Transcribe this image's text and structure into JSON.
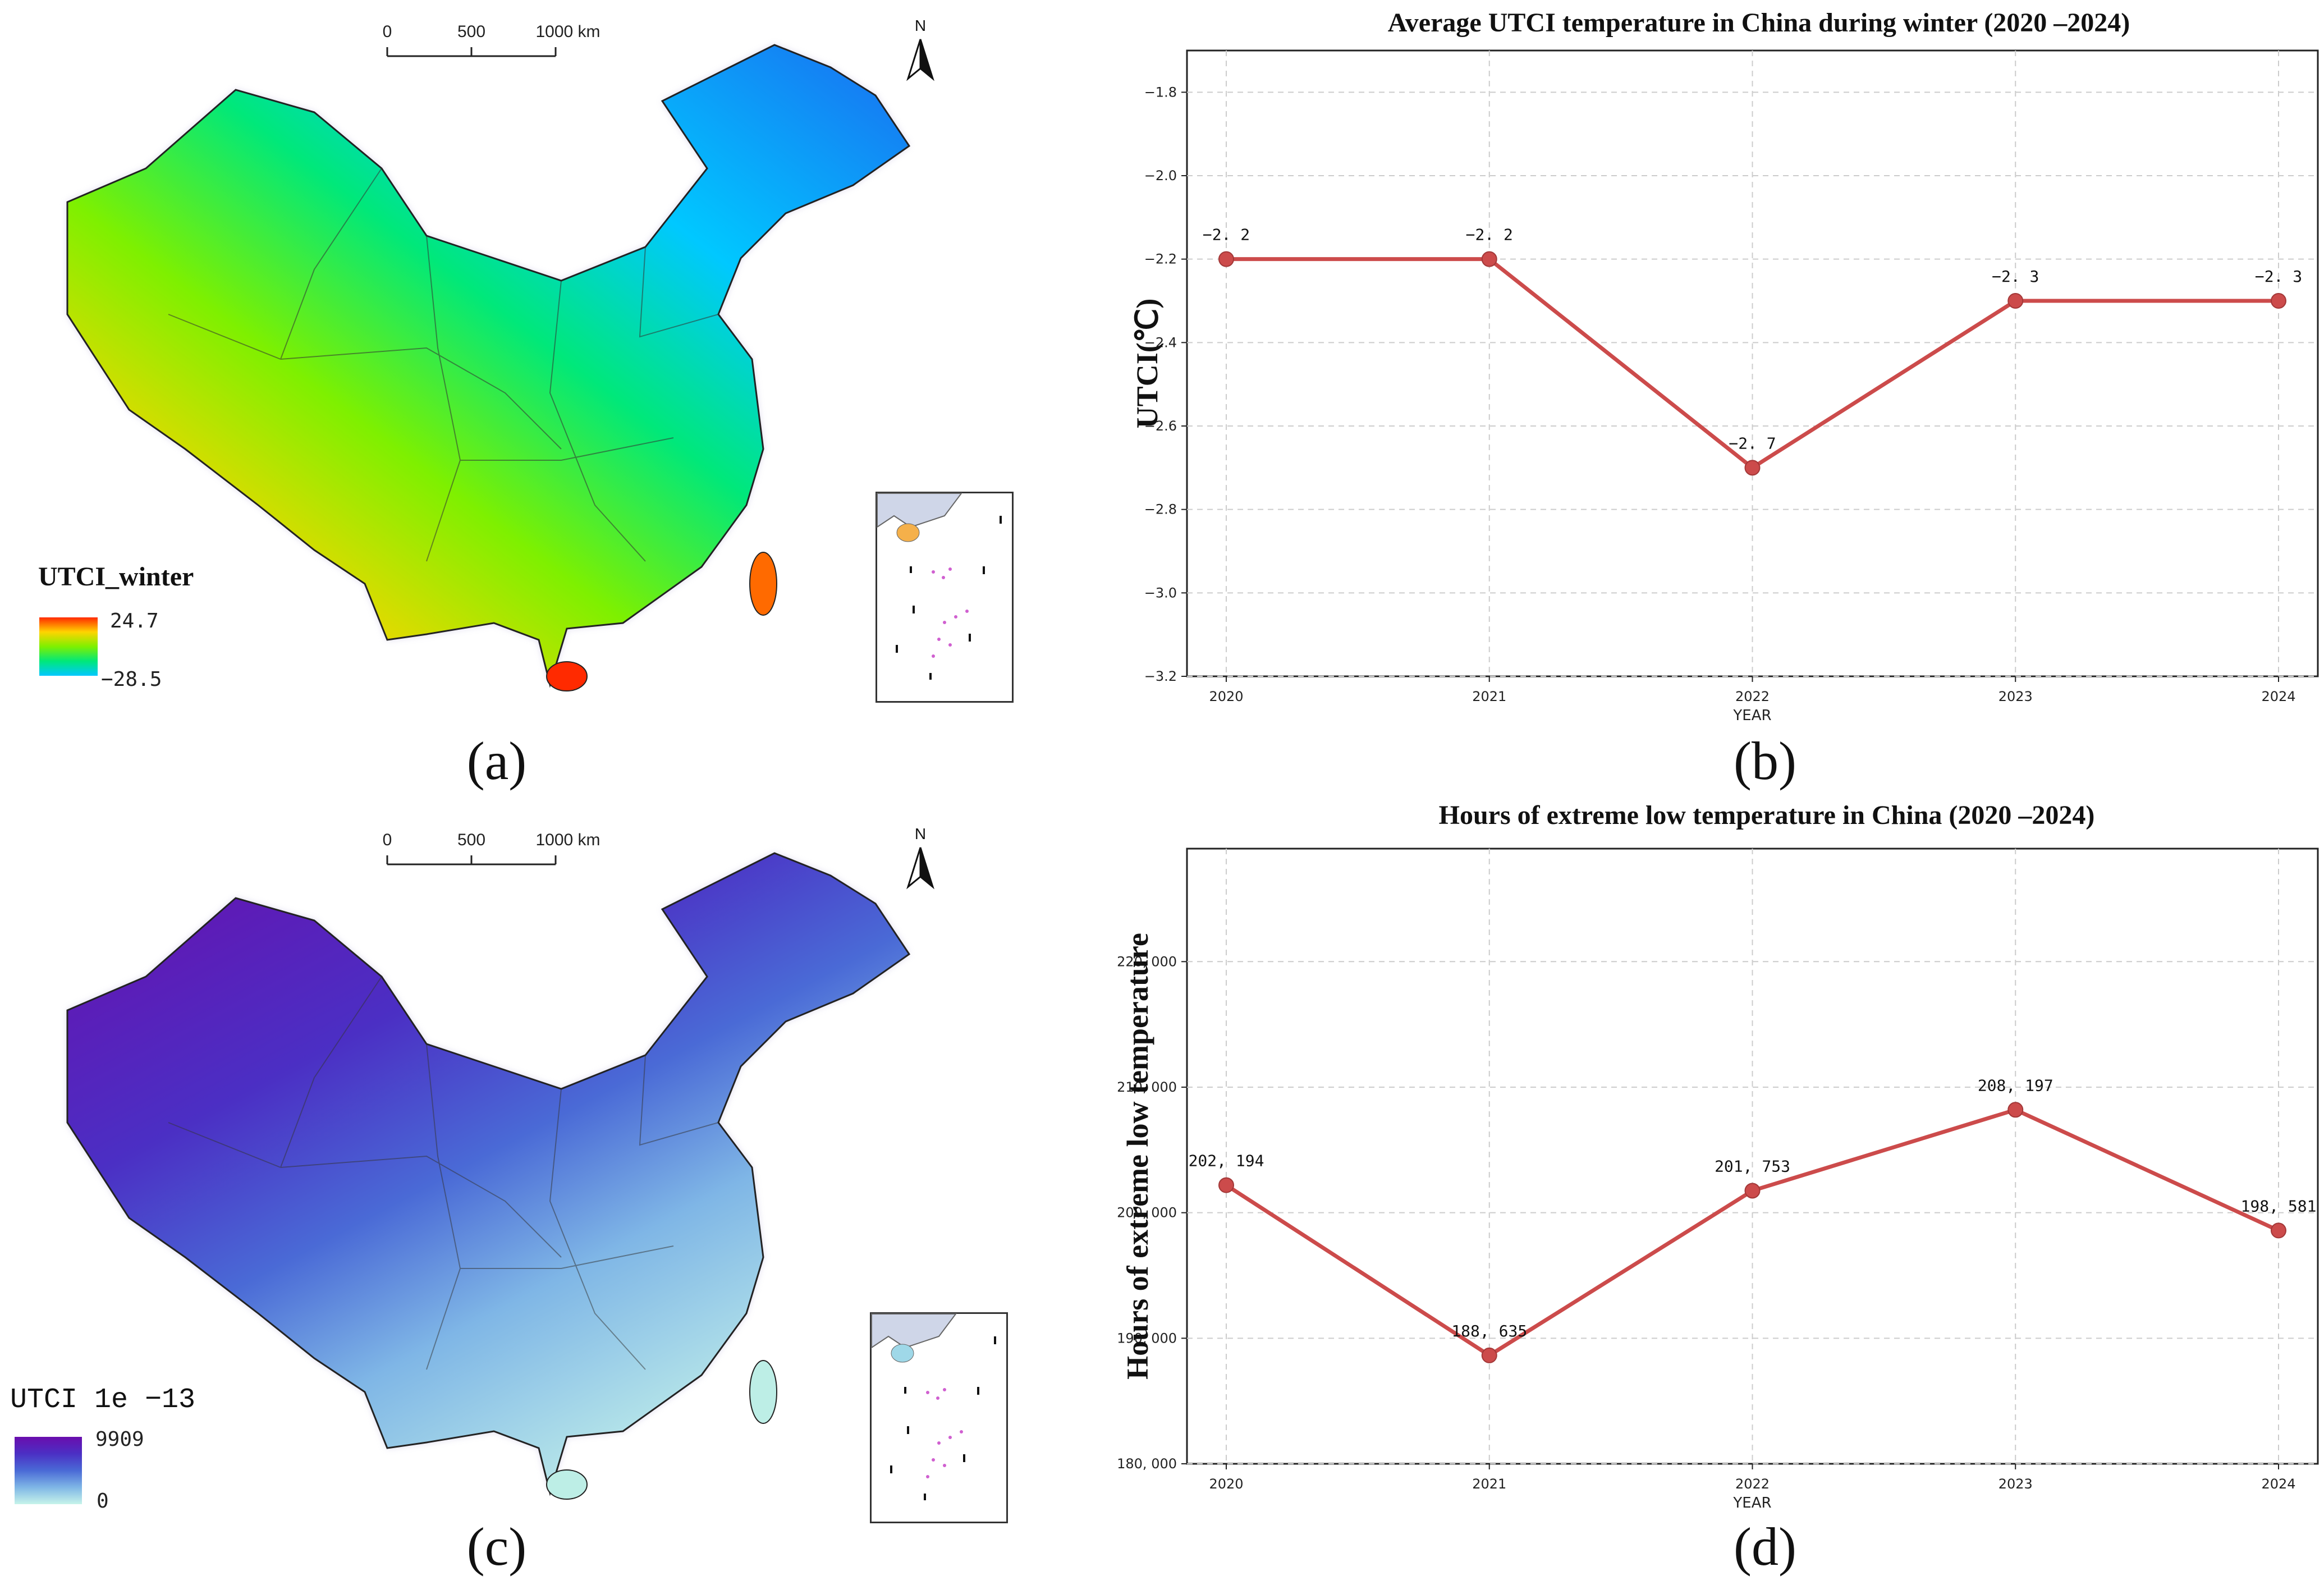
{
  "panels": {
    "a": {
      "caption": "(a)",
      "legend_title": "UTCI_winter",
      "legend_max": "24.7",
      "legend_min": "−28.5",
      "scale_labels": [
        "0",
        "500",
        "1000 km"
      ],
      "north": "N",
      "colors": [
        "#ff2a00",
        "#ffd400",
        "#7ef000",
        "#00e87a",
        "#00c8ff",
        "#1a6cf0"
      ]
    },
    "c": {
      "caption": "(c)",
      "legend_title": "UTCI 1e −13",
      "legend_max": "9909",
      "legend_min": "0",
      "scale_labels": [
        "0",
        "500",
        "1000 km"
      ],
      "north": "N",
      "colors": [
        "#6a0dad",
        "#4b2fc4",
        "#4a6ad6",
        "#7fb6e6",
        "#c7f4ea"
      ]
    },
    "b": {
      "caption": "(b)"
    },
    "d": {
      "caption": "(d)"
    }
  },
  "chart_data": [
    {
      "type": "line",
      "title": "Average UTCI temperature in China during winter (2020 –2024)",
      "xlabel": "YEAR",
      "ylabel": "UTCI(℃)",
      "categories": [
        "2020",
        "2021",
        "2022",
        "2023",
        "2024"
      ],
      "values": [
        -2.2,
        -2.2,
        -2.7,
        -2.3,
        -2.3
      ],
      "data_labels": [
        "−2. 2",
        "−2. 2",
        "−2. 7",
        "−2. 3",
        "−2. 3"
      ],
      "ylim": [
        -3.2,
        -1.7
      ],
      "yticks": [
        -3.2,
        -3.0,
        -2.8,
        -2.6,
        -2.4,
        -2.2,
        -2.0,
        -1.8
      ],
      "ytick_labels": [
        "−3.2",
        "−3.0",
        "−2.8",
        "−2.6",
        "−2.4",
        "−2.2",
        "−2.0",
        "−1.8"
      ],
      "grid": true,
      "color": "#cc4b4b"
    },
    {
      "type": "line",
      "title": "Hours of extreme low temperature in China (2020 –2024)",
      "xlabel": "YEAR",
      "ylabel": "Hours of extreme low temperature",
      "categories": [
        "2020",
        "2021",
        "2022",
        "2023",
        "2024"
      ],
      "values": [
        202194,
        188635,
        201753,
        208197,
        198581
      ],
      "data_labels": [
        "202, 194",
        "188, 635",
        "201, 753",
        "208, 197",
        "198, 581"
      ],
      "ylim": [
        180000,
        229000
      ],
      "yticks": [
        180000,
        190000,
        200000,
        210000,
        220000
      ],
      "ytick_labels": [
        "180, 000",
        "190, 000",
        "200, 000",
        "210, 000",
        "220, 000"
      ],
      "grid": true,
      "color": "#cc4b4b"
    }
  ]
}
